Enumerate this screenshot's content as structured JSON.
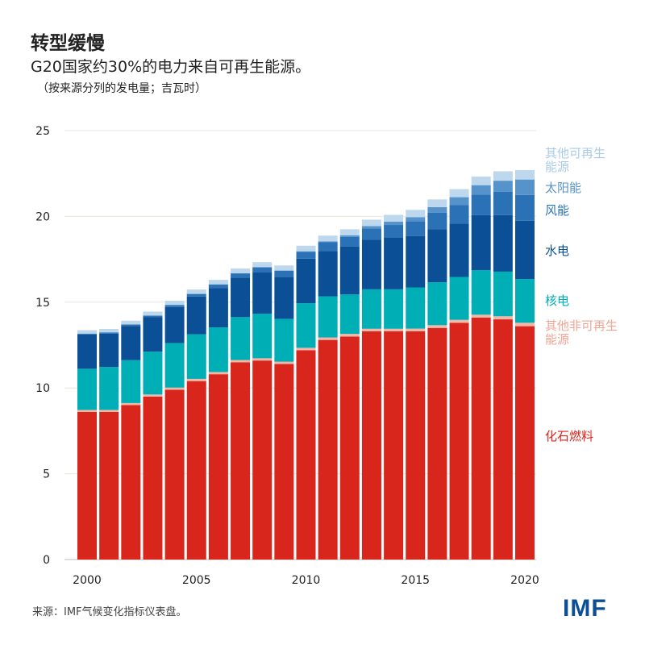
{
  "header": {
    "title": "转型缓慢",
    "subtitle": "G20国家约30%的电力来自可再生能源。",
    "note": "（按来源分列的发电量；吉瓦时）"
  },
  "footer": {
    "source": "来源：IMF气候变化指标仪表盘。",
    "logo": "IMF"
  },
  "chart_data": {
    "type": "bar",
    "stacked": true,
    "title": "转型缓慢",
    "categories": [
      2000,
      2001,
      2002,
      2003,
      2004,
      2005,
      2006,
      2007,
      2008,
      2009,
      2010,
      2011,
      2012,
      2013,
      2014,
      2015,
      2016,
      2017,
      2018,
      2019,
      2020
    ],
    "x_tick_labels": [
      "2000",
      "2005",
      "2010",
      "2015",
      "2020"
    ],
    "y_tick_labels": [
      "0",
      "5",
      "10",
      "15",
      "20",
      "25"
    ],
    "ylim": [
      0,
      25
    ],
    "grid": true,
    "legend": "right, inline labels",
    "series": [
      {
        "name": "化石燃料",
        "color": "#d9261c",
        "values": [
          8.6,
          8.6,
          9.0,
          9.5,
          9.9,
          10.4,
          10.8,
          11.5,
          11.6,
          11.4,
          12.2,
          12.8,
          13.0,
          13.3,
          13.3,
          13.3,
          13.5,
          13.8,
          14.1,
          14.0,
          13.6
        ]
      },
      {
        "name": "其他非可再生能源",
        "color": "#f4b6a6",
        "values": [
          0.12,
          0.12,
          0.12,
          0.12,
          0.12,
          0.13,
          0.13,
          0.13,
          0.13,
          0.13,
          0.14,
          0.14,
          0.15,
          0.15,
          0.15,
          0.16,
          0.16,
          0.17,
          0.17,
          0.18,
          0.2
        ]
      },
      {
        "name": "核电",
        "color": "#00aeb5",
        "values": [
          2.4,
          2.5,
          2.5,
          2.5,
          2.6,
          2.6,
          2.6,
          2.5,
          2.6,
          2.5,
          2.6,
          2.4,
          2.3,
          2.3,
          2.3,
          2.4,
          2.5,
          2.5,
          2.6,
          2.6,
          2.55
        ]
      },
      {
        "name": "水电",
        "color": "#0b4f96",
        "values": [
          2.0,
          1.95,
          2.0,
          2.0,
          2.1,
          2.2,
          2.3,
          2.3,
          2.4,
          2.45,
          2.6,
          2.65,
          2.8,
          2.9,
          3.0,
          3.0,
          3.1,
          3.1,
          3.2,
          3.3,
          3.4
        ]
      },
      {
        "name": "风能",
        "color": "#2a72b5",
        "values": [
          0.05,
          0.07,
          0.08,
          0.1,
          0.12,
          0.15,
          0.2,
          0.25,
          0.3,
          0.35,
          0.4,
          0.5,
          0.55,
          0.65,
          0.75,
          0.85,
          0.95,
          1.1,
          1.2,
          1.35,
          1.5
        ]
      },
      {
        "name": "太阳能",
        "color": "#5593ca",
        "values": [
          0,
          0,
          0,
          0,
          0,
          0.01,
          0.01,
          0.01,
          0.02,
          0.02,
          0.03,
          0.06,
          0.1,
          0.14,
          0.2,
          0.25,
          0.33,
          0.45,
          0.55,
          0.65,
          0.9
        ]
      },
      {
        "name": "其他可再生能源",
        "color": "#bdd7ec",
        "values": [
          0.2,
          0.2,
          0.22,
          0.23,
          0.24,
          0.25,
          0.26,
          0.27,
          0.28,
          0.29,
          0.32,
          0.33,
          0.35,
          0.37,
          0.39,
          0.42,
          0.45,
          0.47,
          0.5,
          0.55,
          0.55
        ]
      }
    ],
    "legend_labels": [
      {
        "lines": [
          "其他可再生",
          "能源"
        ],
        "color": "#bdd7ec"
      },
      {
        "lines": [
          "太阳能"
        ],
        "color": "#5593ca"
      },
      {
        "lines": [
          "风能"
        ],
        "color": "#2a72b5"
      },
      {
        "lines": [
          "水电"
        ],
        "color": "#0b4f96"
      },
      {
        "lines": [
          "核电"
        ],
        "color": "#00aeb5"
      },
      {
        "lines": [
          "其他非可再生",
          "能源"
        ],
        "color": "#f4b6a6"
      },
      {
        "lines": [
          "化石燃料"
        ],
        "color": "#d9261c"
      }
    ]
  }
}
